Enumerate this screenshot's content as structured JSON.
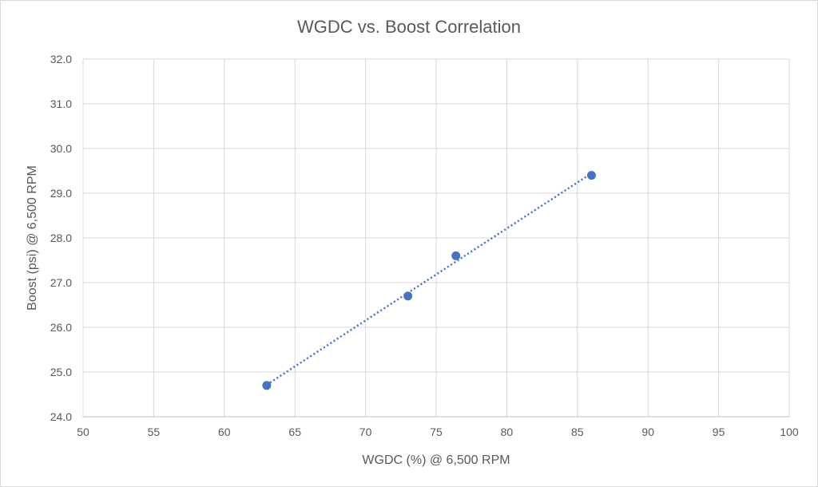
{
  "chart_data": {
    "type": "scatter",
    "title": "WGDC vs. Boost Correlation",
    "xlabel": "WGDC (%) @ 6,500 RPM",
    "ylabel": "Boost (psi) @ 6,500 RPM",
    "xlim": [
      50,
      100
    ],
    "ylim": [
      24.0,
      32.0
    ],
    "x_ticks": [
      "50",
      "55",
      "60",
      "65",
      "70",
      "75",
      "80",
      "85",
      "90",
      "95",
      "100"
    ],
    "y_ticks": [
      "24.0",
      "25.0",
      "26.0",
      "27.0",
      "28.0",
      "29.0",
      "30.0",
      "31.0",
      "32.0"
    ],
    "series": [
      {
        "x": [
          63,
          73,
          76.4,
          86
        ],
        "y": [
          24.7,
          26.7,
          27.6,
          29.4
        ],
        "color": "#4472c4"
      }
    ],
    "trendline": {
      "type": "linear",
      "style": "dotted",
      "color": "#4472c4"
    },
    "grid": true,
    "legend": "none"
  }
}
